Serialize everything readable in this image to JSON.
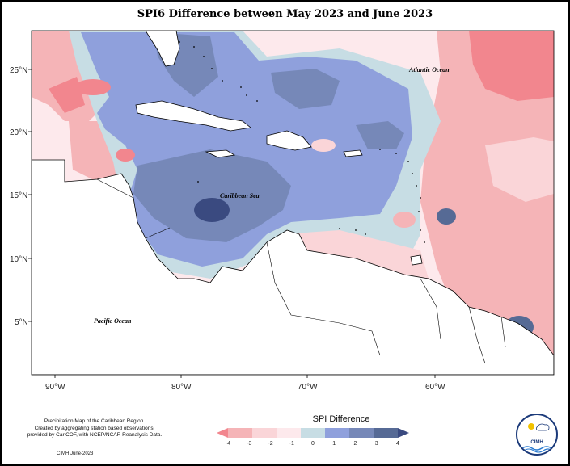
{
  "title": "SPI6 Difference between May 2023 and June 2023",
  "axes": {
    "lat_labels": [
      "25°N",
      "20°N",
      "15°N",
      "10°N",
      "5°N"
    ],
    "lon_labels": [
      "90°W",
      "80°W",
      "70°W",
      "60°W"
    ]
  },
  "ocean_labels": {
    "atlantic": "Atlantic Ocean",
    "caribbean": "Caribbean Sea",
    "pacific": "Pacific Ocean"
  },
  "legend": {
    "title": "SPI Difference",
    "ticks": [
      "-4",
      "-3",
      "-2",
      "-1",
      "0",
      "1",
      "2",
      "3",
      "4"
    ],
    "colors": [
      "#f2868e",
      "#f5b4b7",
      "#fad5d8",
      "#fde9ec",
      "#c7dde4",
      "#8fa0dc",
      "#7688b8",
      "#566a95",
      "#3a4a80"
    ]
  },
  "credit": {
    "lines": [
      "Precipitation Map of the Caribbean Region.",
      "Created by aggregating station based observations,",
      "provided by CariCOF, with NCEP/NCAR Reanalysis Data."
    ],
    "date": "CIMH June-2023"
  },
  "logo": {
    "text": "CIMH"
  }
}
